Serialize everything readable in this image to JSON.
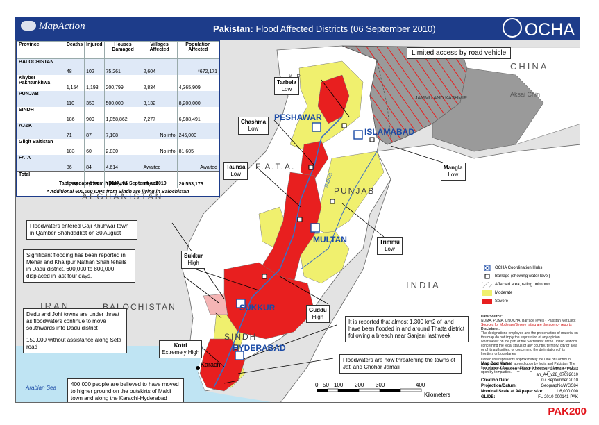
{
  "header": {
    "logo_text": "MapAction",
    "title_country": "Pakistan:",
    "title_rest": "Flood Affected Districts (06 September 2010)",
    "ocha_text": "OCHA"
  },
  "table": {
    "columns": [
      "Province",
      "Deaths",
      "Injured",
      "Houses Damaged",
      "Villages Affected",
      "Population Affected"
    ],
    "rows": [
      {
        "province": "BALOCHISTAN",
        "deaths": "48",
        "injured": "102",
        "houses": "75,261",
        "villages": "2,604",
        "population": "",
        "note": "*672,171"
      },
      {
        "province": "Khyber Pakhtunkhwa",
        "deaths": "1,154",
        "injured": "1,193",
        "houses": "200,799",
        "villages": "2,834",
        "population": "4,365,909",
        "note": ""
      },
      {
        "province": "PUNJAB",
        "deaths": "110",
        "injured": "350",
        "houses": "500,000",
        "villages": "3,132",
        "population": "8,200,000",
        "note": ""
      },
      {
        "province": "SINDH",
        "deaths": "186",
        "injured": "909",
        "houses": "1,058,862",
        "villages": "7,277",
        "population": "6,988,491",
        "note": ""
      },
      {
        "province": "AJ&K",
        "deaths": "71",
        "injured": "87",
        "houses": "7,108",
        "villages": "",
        "population": "245,000",
        "note": "No info"
      },
      {
        "province": "Gilgit Baltistan",
        "deaths": "183",
        "injured": "60",
        "houses": "2,830",
        "villages": "",
        "population": "81,605",
        "note": "No info"
      },
      {
        "province": "FATA",
        "deaths": "86",
        "injured": "84",
        "houses": "4,614",
        "villages": "Awaited",
        "population": "",
        "note": "Awaited"
      }
    ],
    "total": {
      "province": "Total",
      "deaths": "1,838",
      "injured": "2,785",
      "houses": "1,849,474",
      "villages": "15,847",
      "population": "20,553,176"
    },
    "idp_note": "* Additional 600,000 IDPs from Sindh are living in Balochistan",
    "updated": "Table updated from NDMA, 06 September 2010"
  },
  "map": {
    "countries": {
      "china": "CHINA",
      "afghanistan": "AFGHANISTAN",
      "india": "INDIA",
      "iran": "IRAN",
      "aksai_chin": "Aksai Chin"
    },
    "provinces": {
      "kp": "K.P.",
      "fata": "F.A.T.A.",
      "punjab": "PUNJAB",
      "balochistan": "BALOCHISTAN",
      "sindh": "SINDH",
      "jammu": "JAMMU AND KASHMIR"
    },
    "cities": {
      "peshawar": "PESHAWAR",
      "islamabad": "ISLAMABAD",
      "multan": "MULTAN",
      "sukkur": "SUKKUR",
      "hyderabad": "HYDERABAD",
      "karachi": "Karachi"
    },
    "sea": "Arabian Sea",
    "river": "INDUS",
    "limited_access": "Limited access by road vehicle",
    "barrages": [
      {
        "name": "Tarbela",
        "level": "Low"
      },
      {
        "name": "Chashma",
        "level": "Low"
      },
      {
        "name": "Taunsa",
        "level": "Low"
      },
      {
        "name": "Mangla",
        "level": "Low"
      },
      {
        "name": "Trimmu",
        "level": "Low"
      },
      {
        "name": "Sukkur",
        "level": "High"
      },
      {
        "name": "Guddu",
        "level": "High"
      },
      {
        "name": "Kotri",
        "level": "Extremely High"
      }
    ],
    "callouts": {
      "gaji": "Floodwaters entered Gaji Khuhwar town in Qamber Shahdadkot on 30 August",
      "mehar": "Significant flooding has been reported in Mehar and Khairpur Nathan Shah tehsils in Dadu district.  600,000 to 800,000 displaced in last four days.",
      "dadu": "Dadu and Johi towns are under threat as floodwaters continue to move southwards into Dadu district",
      "seta": "150,000 without assistance along Seta road",
      "thatta": "It is reported that almost 1,300 km2 of land have been flooded in and around Thatta district following a breach near Sanjani last week",
      "jati": "Floodwaters are now threatening the towns of Jati and Chohar Jamali",
      "makli": "400,000 people are believed to have moved to higher ground on the outskirts of Makli town and along the Karachi-Hyderabad highway"
    }
  },
  "legend": {
    "hub": "OCHA Coordination Hubs",
    "barrage": "Barrage (showing water level)",
    "unknown": "Affected area, rating unknown",
    "moderate": "Moderate",
    "severe": "Severe",
    "colors": {
      "severe": "#e81f1f",
      "moderate": "#f0f06e",
      "unknown": "#ffffff",
      "land": "#ffffff",
      "outside": "#e3e3e3",
      "china": "#9a9a9a"
    }
  },
  "meta": {
    "source_label": "Data Source:",
    "source_text": "NDMA, PDMA, UNOCHA, Barrage levels - Pakistan Met Dept",
    "warning": "Sources for Moderate/Severe rating are the agency reports",
    "disclaimer_label": "Disclaimer:",
    "disclaimer": "The designations employed and the presentation of material on this map do not imply the expression of any opinion whatsoever on the part of the Secretariat of the United Nations concerning the legal status of any country, territory, city or area or of its authorities, or concerning the delimitation of its frontiers or boundaries.",
    "loc": "Dotted line represents approximately the Line of Control in Jammu and Kashmir agreed upon by India and Pakistan. The final status of Jammu and Kashmir has not yet been agreed upon by the parties."
  },
  "docinfo": {
    "map_doc_label": "Map Doc Name:",
    "map_doc_name": "PAK200_Monsoon_Flood_Affected_Districts_Pakistan_A4_v28_07092010",
    "creation_label": "Creation Date:",
    "creation_date": "07 September 2010",
    "projection_label": "Projection/Datum:",
    "projection": "Geographic/WGS84",
    "scale_label": "Nominal Scale at A4 paper size:",
    "scale": "1:6,000,000",
    "glide_label": "GLIDE:",
    "glide": "FL-2010-000141-PAK"
  },
  "scale": {
    "ticks": [
      "0",
      "50",
      "100",
      "200",
      "300",
      "400"
    ],
    "unit": "Kilometers"
  },
  "map_code": "PAK200"
}
